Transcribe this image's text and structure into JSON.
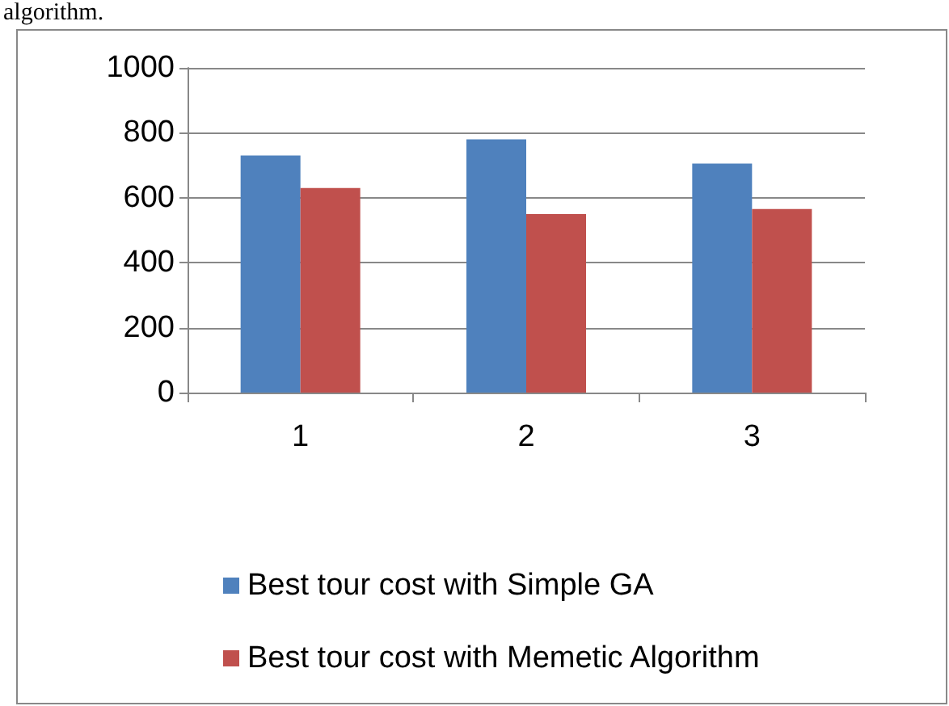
{
  "chart_data": {
    "type": "bar",
    "annotations": [
      "algorithm."
    ],
    "categories": [
      "1",
      "2",
      "3"
    ],
    "series": [
      {
        "name": "Best tour cost with Simple GA",
        "color": "#4f81bd",
        "values": [
          730,
          780,
          705
        ]
      },
      {
        "name": "Best tour cost with Memetic Algorithm",
        "color": "#c0504d",
        "values": [
          630,
          550,
          565
        ]
      }
    ],
    "ylim": [
      0,
      1000
    ],
    "yticks": [
      0,
      200,
      400,
      600,
      800,
      1000
    ],
    "grid": "y",
    "legend": "bottom"
  }
}
